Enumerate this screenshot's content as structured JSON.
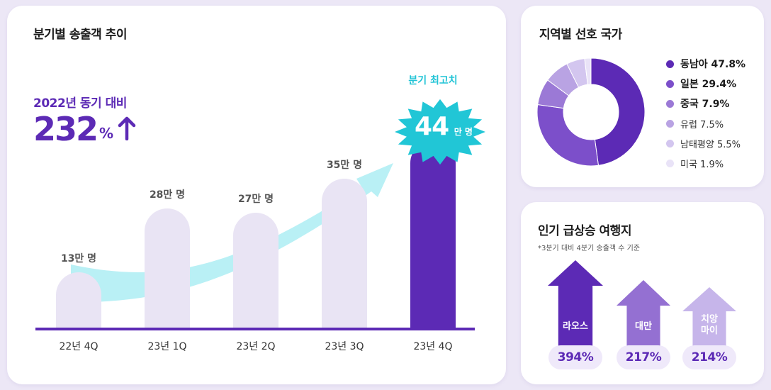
{
  "main": {
    "title": "분기별 송출객 추이",
    "yoy_label": "2022년 동기 대비",
    "yoy_value": "232",
    "yoy_unit": "%",
    "peak_label": "분기 최고치",
    "peak_value": "44",
    "peak_unit": "만 명"
  },
  "chart_data": {
    "type": "bar",
    "categories": [
      "22년 4Q",
      "23년 1Q",
      "23년 2Q",
      "23년 3Q",
      "23년 4Q"
    ],
    "values": [
      13,
      28,
      27,
      35,
      44
    ],
    "value_labels": [
      "13만 명",
      "28만 명",
      "27만 명",
      "35만 명",
      "44만 명"
    ],
    "unit": "만 명",
    "highlight_index": 4,
    "colors": {
      "bar": "#e9e4f4",
      "highlight": "#5c2ab5",
      "trend_arrow": "#7fe3ec",
      "burst": "#21c6d6",
      "baseline": "#5c2ab5"
    }
  },
  "donut": {
    "title": "지역별 선호 국가",
    "chart_data": {
      "type": "pie",
      "categories": [
        "동남아",
        "일본",
        "중국",
        "유럽",
        "남태평양",
        "미국"
      ],
      "values": [
        47.8,
        29.4,
        7.9,
        7.5,
        5.5,
        1.9
      ],
      "labels": [
        "동남아 47.8%",
        "일본 29.4%",
        "중국 7.9%",
        "유럽 7.5%",
        "남태평양 5.5%",
        "미국 1.9%"
      ],
      "colors": [
        "#5c2ab5",
        "#7c4fca",
        "#9b79d6",
        "#b9a3e3",
        "#d3c6ef",
        "#e9e3f7"
      ]
    }
  },
  "trend": {
    "title": "인기 급상승 여행지",
    "note": "*3분기 대비 4분기 송출객 수 기준",
    "items": [
      {
        "name": "라오스",
        "pct": "394%",
        "value": 394,
        "color": "#5c2ab5"
      },
      {
        "name": "대만",
        "pct": "217%",
        "value": 217,
        "color": "#9470d2"
      },
      {
        "name": "치앙\n마이",
        "pct": "214%",
        "value": 214,
        "color": "#c6b5ea"
      }
    ]
  }
}
